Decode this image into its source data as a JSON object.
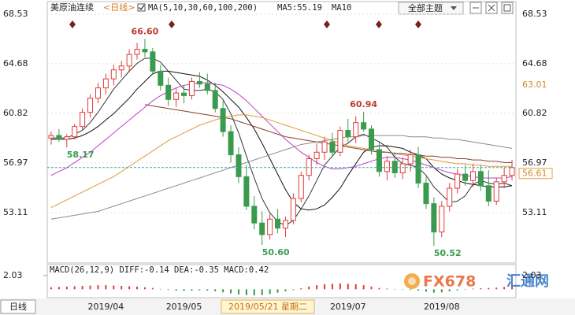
{
  "header": {
    "symbol": "美原油连续",
    "period": "<日线>",
    "ma_label": "MA(5,10,30,60,100,200)",
    "ma5_label": "MA5:55.19",
    "ma10_label": "MA10"
  },
  "toolbar": {
    "topic_button": "全部主题"
  },
  "chart_data": {
    "type": "candlestick",
    "categories": [
      null,
      null,
      null,
      null,
      null,
      null,
      null,
      "2019/04",
      null,
      null,
      null,
      null,
      null,
      null,
      null,
      null,
      null,
      "2019/05",
      null,
      null,
      null,
      null,
      null,
      null,
      null,
      null,
      null,
      null,
      null,
      null,
      null,
      null,
      null,
      null,
      null,
      null,
      null,
      null,
      "2019/07",
      null,
      null,
      null,
      null,
      null,
      null,
      null,
      null,
      null,
      null,
      null,
      "2019/08",
      null,
      null,
      null,
      null,
      null,
      null,
      null,
      null,
      null
    ],
    "candles": [
      [
        58.9,
        59.4,
        58.4,
        59.1
      ],
      [
        59.1,
        59.6,
        58.6,
        58.8
      ],
      [
        58.8,
        59.2,
        58.17,
        59.0
      ],
      [
        59.0,
        60.0,
        58.8,
        59.8
      ],
      [
        59.8,
        61.2,
        59.5,
        60.9
      ],
      [
        60.9,
        62.3,
        60.5,
        62.0
      ],
      [
        62.0,
        63.2,
        61.6,
        62.8
      ],
      [
        62.8,
        63.9,
        62.3,
        63.5
      ],
      [
        63.5,
        64.6,
        63.0,
        64.2
      ],
      [
        64.2,
        64.9,
        63.6,
        64.5
      ],
      [
        64.5,
        65.8,
        64.0,
        65.4
      ],
      [
        65.4,
        66.3,
        65.0,
        65.8
      ],
      [
        65.8,
        66.6,
        65.2,
        65.6
      ],
      [
        65.6,
        65.9,
        63.8,
        64.1
      ],
      [
        64.1,
        64.6,
        62.6,
        63.0
      ],
      [
        63.0,
        63.6,
        61.4,
        61.9
      ],
      [
        61.9,
        62.8,
        61.3,
        62.4
      ],
      [
        62.4,
        63.0,
        61.6,
        62.2
      ],
      [
        62.2,
        63.6,
        61.9,
        63.3
      ],
      [
        63.3,
        64.0,
        62.8,
        63.1
      ],
      [
        63.1,
        63.9,
        62.3,
        62.6
      ],
      [
        62.6,
        63.2,
        60.9,
        61.2
      ],
      [
        61.2,
        61.8,
        59.0,
        59.4
      ],
      [
        59.4,
        59.9,
        57.0,
        57.6
      ],
      [
        57.6,
        58.2,
        55.4,
        55.9
      ],
      [
        55.9,
        56.8,
        53.3,
        53.6
      ],
      [
        53.6,
        54.4,
        51.8,
        52.3
      ],
      [
        52.3,
        53.2,
        50.6,
        51.4
      ],
      [
        51.4,
        53.0,
        51.0,
        52.6
      ],
      [
        52.6,
        53.4,
        51.5,
        51.9
      ],
      [
        51.9,
        52.8,
        51.2,
        52.5
      ],
      [
        52.5,
        54.6,
        52.2,
        54.2
      ],
      [
        54.2,
        56.3,
        53.9,
        56.0
      ],
      [
        56.0,
        57.6,
        55.6,
        57.3
      ],
      [
        57.3,
        58.5,
        56.8,
        57.8
      ],
      [
        57.8,
        59.0,
        57.2,
        58.6
      ],
      [
        58.6,
        59.3,
        57.4,
        57.8
      ],
      [
        57.8,
        59.8,
        57.5,
        59.5
      ],
      [
        59.5,
        60.4,
        58.6,
        59.0
      ],
      [
        59.0,
        60.6,
        58.5,
        60.1
      ],
      [
        60.1,
        60.94,
        59.4,
        59.6
      ],
      [
        59.6,
        59.9,
        57.6,
        58.0
      ],
      [
        58.0,
        58.6,
        55.9,
        56.3
      ],
      [
        56.3,
        57.5,
        55.6,
        57.1
      ],
      [
        57.1,
        57.8,
        55.8,
        56.2
      ],
      [
        56.2,
        57.4,
        55.7,
        56.9
      ],
      [
        56.9,
        58.0,
        56.3,
        57.6
      ],
      [
        57.6,
        58.2,
        55.0,
        55.4
      ],
      [
        55.4,
        55.9,
        53.4,
        53.8
      ],
      [
        53.8,
        54.3,
        50.52,
        51.6
      ],
      [
        51.6,
        54.0,
        51.2,
        53.6
      ],
      [
        53.6,
        55.4,
        53.2,
        55.0
      ],
      [
        55.0,
        56.5,
        54.6,
        56.1
      ],
      [
        56.1,
        56.8,
        55.2,
        55.6
      ],
      [
        55.6,
        56.9,
        55.1,
        56.3
      ],
      [
        56.3,
        56.8,
        54.8,
        55.2
      ],
      [
        55.2,
        56.4,
        53.6,
        54.0
      ],
      [
        54.0,
        55.8,
        53.7,
        55.5
      ],
      [
        55.5,
        56.6,
        55.0,
        56.0
      ],
      [
        56.0,
        57.2,
        55.6,
        56.61
      ]
    ],
    "up_color": "#e03c3c",
    "down_color": "#3a9b4f",
    "ylim": [
      49.25,
      69.14
    ],
    "yticks": [
      68.53,
      64.68,
      60.82,
      56.97,
      53.11
    ],
    "grid": true,
    "ma_lines": [
      {
        "color": "#333333",
        "values": [
          58.9,
          58.9,
          58.9,
          59.2,
          59.5,
          60.1,
          60.9,
          61.8,
          62.7,
          63.4,
          64.1,
          64.7,
          65.1,
          65.1,
          64.8,
          64.1,
          63.4,
          62.7,
          62.6,
          62.6,
          62.7,
          62.5,
          61.9,
          60.8,
          59.3,
          57.5,
          55.8,
          54.2,
          53.1,
          52.4,
          52.1,
          52.5,
          53.4,
          54.4,
          55.6,
          56.8,
          57.5,
          58.2,
          58.5,
          59.0,
          59.2,
          58.9,
          58.6,
          58.2,
          57.4,
          56.9,
          56.8,
          56.6,
          56.0,
          55.1,
          54.5,
          53.9,
          54.0,
          54.4,
          55.3,
          55.6,
          55.4,
          55.3,
          55.4,
          55.19
        ]
      },
      {
        "color": "#111111",
        "values": [
          58.8,
          58.8,
          58.8,
          58.9,
          59.1,
          59.4,
          59.8,
          60.3,
          60.8,
          61.4,
          62.0,
          62.7,
          63.3,
          63.9,
          64.1,
          64.1,
          64.0,
          63.9,
          63.8,
          63.7,
          63.4,
          63.0,
          62.5,
          61.9,
          61.3,
          60.5,
          59.6,
          58.5,
          57.3,
          56.1,
          54.9,
          53.9,
          53.4,
          53.3,
          53.4,
          53.7,
          54.3,
          55.0,
          56.0,
          56.9,
          57.8,
          58.2,
          58.3,
          58.3,
          58.2,
          58.1,
          57.8,
          57.6,
          57.3,
          56.6,
          56.1,
          55.8,
          55.6,
          55.4,
          55.3,
          55.2,
          55.1,
          55.1,
          55.1,
          55.2
        ]
      },
      {
        "color": "#c23fc2",
        "values": [
          56.0,
          56.3,
          56.6,
          57.0,
          57.4,
          57.8,
          58.3,
          58.8,
          59.3,
          59.8,
          60.3,
          60.8,
          61.3,
          61.8,
          62.2,
          62.5,
          62.8,
          63.0,
          63.1,
          63.2,
          63.2,
          63.1,
          63.0,
          62.7,
          62.3,
          61.8,
          61.2,
          60.6,
          60.0,
          59.4,
          58.8,
          58.3,
          57.8,
          57.4,
          57.0,
          56.7,
          56.5,
          56.5,
          56.6,
          56.7,
          56.9,
          57.1,
          57.3,
          57.4,
          57.4,
          57.3,
          57.2,
          57.0,
          56.8,
          56.6,
          56.4,
          56.2,
          56.1,
          56.0,
          55.9,
          55.8,
          55.8,
          55.8,
          55.8,
          55.9
        ]
      },
      {
        "color": "#e29b3a",
        "values": [
          53.5,
          53.8,
          54.1,
          54.4,
          54.7,
          55.0,
          55.3,
          55.6,
          55.9,
          56.3,
          56.7,
          57.1,
          57.5,
          57.9,
          58.3,
          58.7,
          59.0,
          59.3,
          59.6,
          59.9,
          60.1,
          60.3,
          60.5,
          60.6,
          60.7,
          60.7,
          60.6,
          60.5,
          60.3,
          60.1,
          59.9,
          59.7,
          59.5,
          59.3,
          59.1,
          58.9,
          58.7,
          58.5,
          58.3,
          58.2,
          58.1,
          58.0,
          57.9,
          57.8,
          57.7,
          57.6,
          57.5,
          57.4,
          57.3,
          57.2,
          57.1,
          57.0,
          56.9,
          56.9,
          56.8,
          56.8,
          56.7,
          56.7,
          56.7,
          56.7
        ]
      },
      {
        "color": "#8a3b2e",
        "values": [
          null,
          null,
          null,
          null,
          null,
          null,
          null,
          null,
          null,
          null,
          null,
          null,
          61.5,
          61.4,
          61.3,
          61.2,
          61.1,
          61.0,
          60.9,
          60.8,
          60.7,
          60.6,
          60.5,
          60.4,
          60.2,
          60.0,
          59.8,
          59.6,
          59.4,
          59.2,
          59.0,
          58.9,
          58.8,
          58.7,
          58.6,
          58.5,
          58.4,
          58.3,
          58.2,
          58.1,
          58.0,
          57.9,
          57.8,
          57.8,
          57.7,
          57.7,
          57.6,
          57.6,
          57.5,
          57.5,
          57.4,
          57.4,
          57.3,
          57.3,
          57.2,
          57.2,
          57.1,
          57.1,
          57.0,
          57.0
        ]
      },
      {
        "color": "#8c8c8c",
        "values": [
          52.6,
          52.7,
          52.8,
          52.9,
          53.0,
          53.1,
          53.2,
          53.4,
          53.6,
          53.8,
          54.0,
          54.2,
          54.4,
          54.6,
          54.8,
          55.0,
          55.2,
          55.4,
          55.6,
          55.8,
          56.0,
          56.2,
          56.4,
          56.6,
          56.8,
          57.0,
          57.2,
          57.4,
          57.6,
          57.8,
          58.0,
          58.2,
          58.4,
          58.5,
          58.6,
          58.7,
          58.8,
          58.9,
          59.0,
          59.0,
          59.1,
          59.1,
          59.1,
          59.1,
          59.1,
          59.1,
          59.0,
          59.0,
          59.0,
          58.9,
          58.9,
          58.8,
          58.8,
          58.7,
          58.6,
          58.5,
          58.4,
          58.3,
          58.2,
          58.1
        ]
      }
    ],
    "annotations": [
      {
        "value": 66.6,
        "label": "66.60"
      },
      58.17,
      60.94,
      {
        "value": 50.6,
        "label": "50.60"
      },
      50.52
    ],
    "ma_level": 63.01,
    "last_price": 56.61,
    "crosshair_date": "2019/05/21 星期二"
  },
  "macd": {
    "type": "bar",
    "label": "MACD(26,12,9) DIFF:-0.14 DEA:-0.35 MACD:0.42",
    "values": [
      0.3,
      0.35,
      0.4,
      0.45,
      0.5,
      0.55,
      0.6,
      0.6,
      0.55,
      0.5,
      0.45,
      0.4,
      0.3,
      0.2,
      0.05,
      -0.1,
      -0.2,
      -0.25,
      -0.2,
      -0.15,
      -0.2,
      -0.3,
      -0.45,
      -0.6,
      -0.75,
      -0.85,
      -0.9,
      -0.85,
      -0.7,
      -0.5,
      -0.3,
      -0.1,
      0.15,
      0.4,
      0.6,
      0.75,
      0.8,
      0.85,
      0.8,
      0.75,
      0.6,
      0.4,
      0.2,
      0.1,
      0.0,
      -0.05,
      -0.1,
      -0.2,
      -0.35,
      -0.5,
      -0.45,
      -0.3,
      -0.15,
      0.0,
      0.1,
      0.15,
      0.2,
      0.25,
      0.35,
      0.42
    ],
    "ylim": [
      -1.0,
      3.4
    ],
    "yticks": [
      2.03
    ],
    "up_color": "#e03c3c",
    "down_color": "#3a9b4f"
  },
  "footer": {
    "period": "日线"
  },
  "watermark": {
    "code": "FX678",
    "name": "汇通网"
  }
}
